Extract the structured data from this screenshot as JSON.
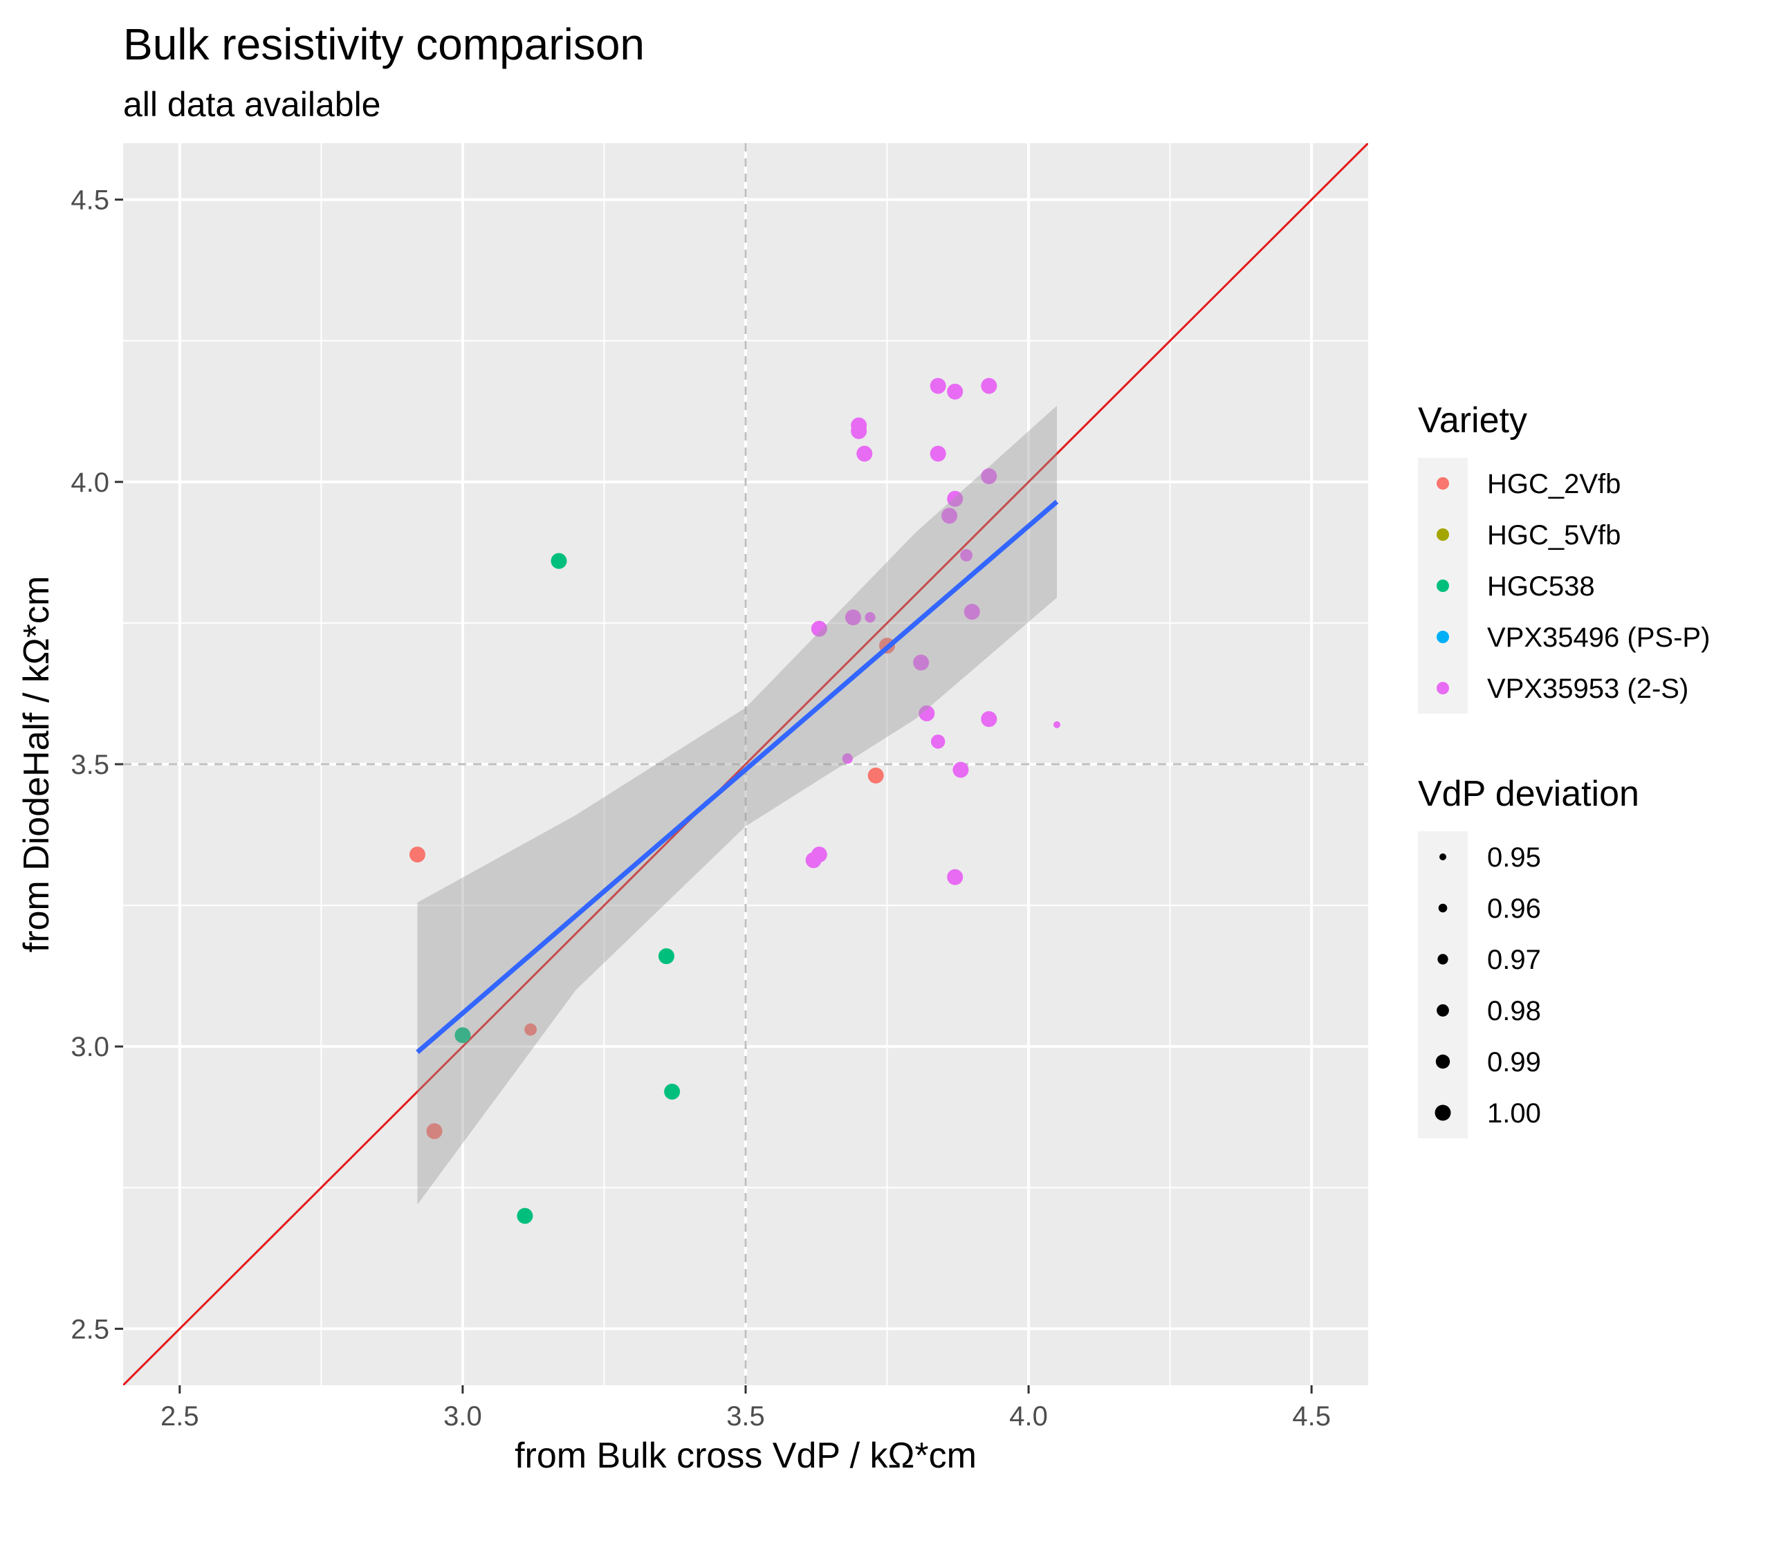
{
  "chart_data": {
    "type": "scatter",
    "title": "Bulk resistivity comparison",
    "subtitle": "all data available",
    "xlabel": "from Bulk cross VdP / kΩ*cm",
    "ylabel": "from DiodeHalf / kΩ*cm",
    "xlim": [
      2.4,
      4.6
    ],
    "ylim": [
      2.4,
      4.6
    ],
    "x_ticks": [
      2.5,
      3.0,
      3.5,
      4.0,
      4.5
    ],
    "y_ticks": [
      2.5,
      3.0,
      3.5,
      4.0,
      4.5
    ],
    "x_tick_labels": [
      "2.5",
      "3.0",
      "3.5",
      "4.0",
      "4.5"
    ],
    "y_tick_labels": [
      "2.5",
      "3.0",
      "3.5",
      "4.0",
      "4.5"
    ],
    "grid": true,
    "background": "#ebebeb",
    "reference_lines": {
      "vertical_x": 3.5,
      "horizontal_y": 3.5,
      "color": "#bebebe",
      "style": "dashed"
    },
    "identity_line": {
      "x": [
        2.4,
        4.6
      ],
      "y": [
        2.4,
        4.6
      ],
      "color": "#e41a1c"
    },
    "fit_line": {
      "x": [
        2.92,
        4.05
      ],
      "y": [
        2.99,
        3.965
      ],
      "color": "#3366ff"
    },
    "confidence_band": {
      "x": [
        2.92,
        3.2,
        3.5,
        3.8,
        4.05
      ],
      "upper": [
        3.255,
        3.41,
        3.6,
        3.91,
        4.135
      ],
      "lower": [
        2.72,
        3.1,
        3.39,
        3.58,
        3.795
      ],
      "color": "#999999"
    },
    "legend_position": "right",
    "color_legend": {
      "title": "Variety",
      "entries": [
        {
          "label": "HGC_2Vfb",
          "color": "#f8766d"
        },
        {
          "label": "HGC_5Vfb",
          "color": "#a3a500"
        },
        {
          "label": "HGC538",
          "color": "#00bf7d"
        },
        {
          "label": "VPX35496 (PS-P)",
          "color": "#00b0f6"
        },
        {
          "label": "VPX35953 (2-S)",
          "color": "#e76bf3"
        }
      ]
    },
    "size_legend": {
      "title": "VdP deviation",
      "entries": [
        {
          "label": "0.95",
          "value": 0.95
        },
        {
          "label": "0.96",
          "value": 0.96
        },
        {
          "label": "0.97",
          "value": 0.97
        },
        {
          "label": "0.98",
          "value": 0.98
        },
        {
          "label": "0.99",
          "value": 0.99
        },
        {
          "label": "1.00",
          "value": 1.0
        }
      ]
    },
    "series": [
      {
        "name": "HGC_2Vfb",
        "color": "#f8766d",
        "points": [
          {
            "x": 2.92,
            "y": 3.34,
            "dev": 1.0
          },
          {
            "x": 2.95,
            "y": 2.85,
            "dev": 1.0
          },
          {
            "x": 3.12,
            "y": 3.03,
            "dev": 0.98
          },
          {
            "x": 3.73,
            "y": 3.48,
            "dev": 1.0
          },
          {
            "x": 3.75,
            "y": 3.71,
            "dev": 1.0
          }
        ]
      },
      {
        "name": "HGC538",
        "color": "#00bf7d",
        "points": [
          {
            "x": 3.17,
            "y": 3.86,
            "dev": 1.0
          },
          {
            "x": 3.0,
            "y": 3.02,
            "dev": 1.0
          },
          {
            "x": 3.11,
            "y": 2.7,
            "dev": 1.0
          },
          {
            "x": 3.36,
            "y": 3.16,
            "dev": 1.0
          },
          {
            "x": 3.37,
            "y": 2.92,
            "dev": 1.0
          }
        ]
      },
      {
        "name": "VPX35953 (2-S)",
        "color": "#e76bf3",
        "points": [
          {
            "x": 3.84,
            "y": 4.17,
            "dev": 1.0
          },
          {
            "x": 3.87,
            "y": 4.16,
            "dev": 1.0
          },
          {
            "x": 3.93,
            "y": 4.17,
            "dev": 1.0
          },
          {
            "x": 3.7,
            "y": 4.1,
            "dev": 1.0
          },
          {
            "x": 3.7,
            "y": 4.09,
            "dev": 1.0
          },
          {
            "x": 3.71,
            "y": 4.05,
            "dev": 1.0
          },
          {
            "x": 3.84,
            "y": 4.05,
            "dev": 1.0
          },
          {
            "x": 3.93,
            "y": 4.01,
            "dev": 1.0
          },
          {
            "x": 3.87,
            "y": 3.97,
            "dev": 1.0
          },
          {
            "x": 3.86,
            "y": 3.94,
            "dev": 1.0
          },
          {
            "x": 3.89,
            "y": 3.87,
            "dev": 0.98
          },
          {
            "x": 3.9,
            "y": 3.77,
            "dev": 1.0
          },
          {
            "x": 3.63,
            "y": 3.74,
            "dev": 1.0
          },
          {
            "x": 3.69,
            "y": 3.76,
            "dev": 1.0
          },
          {
            "x": 3.72,
            "y": 3.76,
            "dev": 0.97
          },
          {
            "x": 3.81,
            "y": 3.68,
            "dev": 1.0
          },
          {
            "x": 3.82,
            "y": 3.59,
            "dev": 1.0
          },
          {
            "x": 3.93,
            "y": 3.58,
            "dev": 1.0
          },
          {
            "x": 3.84,
            "y": 3.54,
            "dev": 0.99
          },
          {
            "x": 3.68,
            "y": 3.51,
            "dev": 0.97
          },
          {
            "x": 3.88,
            "y": 3.49,
            "dev": 1.0
          },
          {
            "x": 4.05,
            "y": 3.57,
            "dev": 0.95
          },
          {
            "x": 3.63,
            "y": 3.34,
            "dev": 1.0
          },
          {
            "x": 3.62,
            "y": 3.33,
            "dev": 1.0
          },
          {
            "x": 3.87,
            "y": 3.3,
            "dev": 1.0
          }
        ]
      }
    ]
  }
}
